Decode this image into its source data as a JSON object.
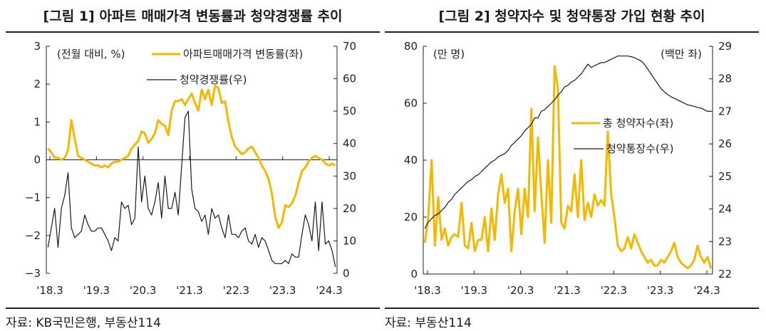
{
  "figure1": {
    "title": "[그림 1] 아파트 매매가격 변동률과 청약경쟁률 추이",
    "source": "자료: KB국민은행, 부동산114",
    "chart_data": {
      "type": "line",
      "left_unit": "(전월 대비, %)",
      "x_ticks": [
        "'18.3",
        "'19.3",
        "'20.3",
        "'21.3",
        "'22.3",
        "'23.3",
        "'24.3"
      ],
      "yleft_ticks": [
        "3",
        "2",
        "1",
        "0",
        "−1",
        "−2",
        "−3"
      ],
      "yright_ticks": [
        "70",
        "60",
        "50",
        "40",
        "30",
        "20",
        "10",
        "0"
      ],
      "ylim_left": [
        -3,
        3
      ],
      "ylim_right": [
        0,
        70
      ],
      "x_start": 2018.167,
      "x_end": 2024.333,
      "series": [
        {
          "name": "아파트매매가격 변동률(좌)",
          "axis": "left",
          "color": "#F5B800",
          "values": [
            0.3,
            0.2,
            0.05,
            0.05,
            0.0,
            0.05,
            0.25,
            1.05,
            0.55,
            0.1,
            0.05,
            0.0,
            -0.05,
            -0.1,
            -0.15,
            -0.15,
            -0.2,
            -0.15,
            -0.2,
            -0.1,
            -0.05,
            -0.05,
            0.0,
            0.05,
            0.1,
            0.3,
            0.4,
            0.5,
            0.75,
            0.7,
            0.45,
            0.55,
            0.7,
            1.05,
            0.95,
            0.9,
            0.65,
            1.3,
            1.55,
            1.55,
            1.6,
            1.45,
            1.6,
            1.75,
            1.5,
            1.3,
            1.85,
            1.6,
            1.85,
            1.45,
            1.95,
            1.9,
            1.5,
            1.55,
            1.0,
            0.6,
            0.35,
            0.25,
            0.15,
            0.2,
            0.3,
            0.35,
            0.2,
            0.05,
            -0.15,
            -0.3,
            -0.5,
            -0.9,
            -1.5,
            -1.8,
            -1.65,
            -1.2,
            -1.25,
            -1.15,
            -0.95,
            -0.6,
            -0.3,
            -0.2,
            -0.05,
            0.05,
            0.1,
            0.05,
            0.0,
            -0.1,
            -0.15,
            -0.1,
            -0.15
          ]
        },
        {
          "name": "청약경쟁률(우)",
          "axis": "right",
          "color": "#1a1a1a",
          "values": [
            8,
            14,
            20,
            8,
            20,
            24,
            31,
            14,
            11,
            12,
            13,
            18,
            15,
            13,
            13,
            14,
            14,
            12,
            10,
            7,
            11,
            10,
            22,
            20,
            21,
            15,
            17,
            39,
            22,
            30,
            20,
            18,
            22,
            28,
            17,
            30,
            20,
            20,
            25,
            18,
            33,
            48,
            50,
            26,
            20,
            19,
            16,
            18,
            12,
            20,
            17,
            18,
            14,
            11,
            18,
            12,
            12,
            11,
            13,
            14,
            10,
            9,
            12,
            8,
            11,
            10,
            7,
            4,
            3,
            3,
            3,
            4,
            3,
            6,
            5,
            5,
            12,
            18,
            15,
            10,
            22,
            7,
            22,
            9,
            10,
            7,
            2
          ]
        }
      ]
    }
  },
  "figure2": {
    "title": "[그림 2] 청약자수 및 청약통장 가입 현황 추이",
    "source": "자료: 부동산114",
    "chart_data": {
      "type": "line",
      "left_unit": "(만 명)",
      "right_unit": "(백만 좌)",
      "x_ticks": [
        "'18.3",
        "'19.3",
        "'20.3",
        "'21.3",
        "'22.3",
        "'23.3",
        "'24.3"
      ],
      "yleft_ticks": [
        "80",
        "60",
        "40",
        "20",
        "0"
      ],
      "yright_ticks": [
        "29",
        "28",
        "27",
        "26",
        "25",
        "24",
        "23",
        "22"
      ],
      "ylim_left": [
        0,
        80
      ],
      "ylim_right": [
        22,
        29
      ],
      "x_start": 2018.167,
      "x_end": 2024.333,
      "series": [
        {
          "name": "총 청약자수(좌)",
          "axis": "left",
          "color": "#F5B800",
          "values": [
            11,
            20,
            40,
            10,
            27,
            12,
            16,
            10,
            13,
            14,
            13,
            25,
            10,
            9,
            18,
            8,
            12,
            12,
            20,
            8,
            23,
            12,
            28,
            35,
            25,
            30,
            8,
            22,
            30,
            14,
            30,
            20,
            58,
            22,
            48,
            28,
            11,
            40,
            18,
            73,
            65,
            18,
            16,
            24,
            22,
            35,
            20,
            40,
            19,
            25,
            20,
            28,
            24,
            26,
            24,
            50,
            28,
            20,
            10,
            8,
            9,
            13,
            9,
            14,
            11,
            8,
            6,
            4,
            5,
            3,
            3,
            5,
            4,
            6,
            8,
            11,
            6,
            4,
            3,
            2,
            3,
            5,
            10,
            6,
            4,
            6,
            2
          ]
        },
        {
          "name": "청약통장수(우)",
          "axis": "right",
          "color": "#1a1a1a",
          "values": [
            23.4,
            23.6,
            23.7,
            23.8,
            23.85,
            23.95,
            24.05,
            24.2,
            24.3,
            24.45,
            24.55,
            24.65,
            24.75,
            24.85,
            24.9,
            25.0,
            25.05,
            25.15,
            25.25,
            25.35,
            25.45,
            25.5,
            25.6,
            25.65,
            25.7,
            25.8,
            25.95,
            26.05,
            26.15,
            26.25,
            26.4,
            26.5,
            26.6,
            26.8,
            26.8,
            27.0,
            27.05,
            27.15,
            27.25,
            27.35,
            27.5,
            27.6,
            27.75,
            27.8,
            27.9,
            27.95,
            28.05,
            28.15,
            28.3,
            28.45,
            28.35,
            28.4,
            28.45,
            28.5,
            28.5,
            28.55,
            28.6,
            28.65,
            28.7,
            28.7,
            28.7,
            28.7,
            28.68,
            28.65,
            28.6,
            28.55,
            28.45,
            28.3,
            28.15,
            28.0,
            27.85,
            27.7,
            27.6,
            27.52,
            27.45,
            27.4,
            27.35,
            27.3,
            27.25,
            27.2,
            27.18,
            27.15,
            27.12,
            27.1,
            27.05,
            27.0,
            27.0
          ]
        }
      ]
    }
  }
}
